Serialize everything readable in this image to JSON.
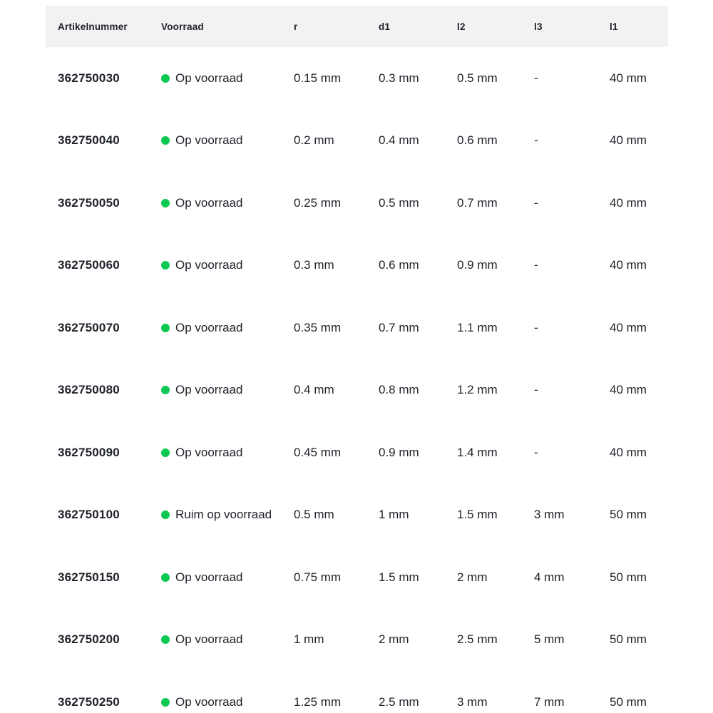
{
  "accent": {
    "in_stock_dot_color": "#0bc853",
    "header_bg": "#f2f2f2"
  },
  "table": {
    "columns": [
      {
        "key": "artikelnummer",
        "label": "Artikelnummer"
      },
      {
        "key": "voorraad",
        "label": "Voorraad"
      },
      {
        "key": "r",
        "label": "r"
      },
      {
        "key": "d1",
        "label": "d1"
      },
      {
        "key": "l2",
        "label": "l2"
      },
      {
        "key": "l3",
        "label": "l3"
      },
      {
        "key": "l1",
        "label": "l1"
      }
    ],
    "rows": [
      {
        "artikelnummer": "362750030",
        "voorraad": "Op voorraad",
        "r": "0.15 mm",
        "d1": "0.3 mm",
        "l2": "0.5 mm",
        "l3": "-",
        "l1": "40 mm"
      },
      {
        "artikelnummer": "362750040",
        "voorraad": "Op voorraad",
        "r": "0.2 mm",
        "d1": "0.4 mm",
        "l2": "0.6 mm",
        "l3": "-",
        "l1": "40 mm"
      },
      {
        "artikelnummer": "362750050",
        "voorraad": "Op voorraad",
        "r": "0.25 mm",
        "d1": "0.5 mm",
        "l2": "0.7 mm",
        "l3": "-",
        "l1": "40 mm"
      },
      {
        "artikelnummer": "362750060",
        "voorraad": "Op voorraad",
        "r": "0.3 mm",
        "d1": "0.6 mm",
        "l2": "0.9 mm",
        "l3": "-",
        "l1": "40 mm"
      },
      {
        "artikelnummer": "362750070",
        "voorraad": "Op voorraad",
        "r": "0.35 mm",
        "d1": "0.7 mm",
        "l2": "1.1 mm",
        "l3": "-",
        "l1": "40 mm"
      },
      {
        "artikelnummer": "362750080",
        "voorraad": "Op voorraad",
        "r": "0.4 mm",
        "d1": "0.8 mm",
        "l2": "1.2 mm",
        "l3": "-",
        "l1": "40 mm"
      },
      {
        "artikelnummer": "362750090",
        "voorraad": "Op voorraad",
        "r": "0.45 mm",
        "d1": "0.9 mm",
        "l2": "1.4 mm",
        "l3": "-",
        "l1": "40 mm"
      },
      {
        "artikelnummer": "362750100",
        "voorraad": "Ruim op voorraad",
        "r": "0.5 mm",
        "d1": "1 mm",
        "l2": "1.5 mm",
        "l3": "3 mm",
        "l1": "50 mm"
      },
      {
        "artikelnummer": "362750150",
        "voorraad": "Op voorraad",
        "r": "0.75 mm",
        "d1": "1.5 mm",
        "l2": "2 mm",
        "l3": "4 mm",
        "l1": "50 mm"
      },
      {
        "artikelnummer": "362750200",
        "voorraad": "Op voorraad",
        "r": "1 mm",
        "d1": "2 mm",
        "l2": "2.5 mm",
        "l3": "5 mm",
        "l1": "50 mm"
      },
      {
        "artikelnummer": "362750250",
        "voorraad": "Op voorraad",
        "r": "1.25 mm",
        "d1": "2.5 mm",
        "l2": "3 mm",
        "l3": "7 mm",
        "l1": "50 mm"
      }
    ]
  }
}
